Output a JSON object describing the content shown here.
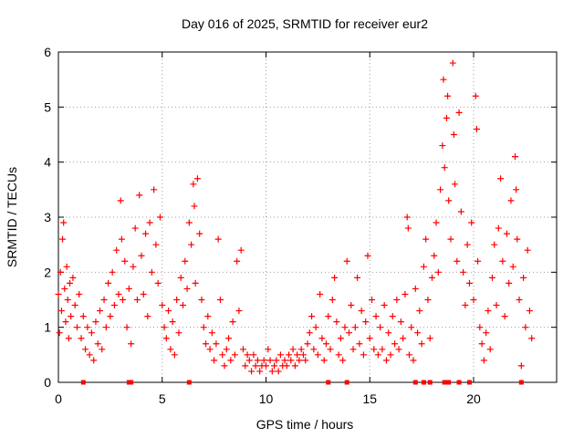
{
  "chart_data": {
    "type": "scatter",
    "title": "Day 016 of 2025, SRMTID for receiver eur2",
    "xlabel": "GPS time / hours",
    "ylabel": "SRMTID / TECUs",
    "xlim": [
      0,
      24
    ],
    "ylim": [
      0,
      6
    ],
    "xticks": [
      0,
      5,
      10,
      15,
      20
    ],
    "yticks": [
      0,
      1,
      2,
      3,
      4,
      5,
      6
    ],
    "grid": true,
    "marker": "+",
    "color": "#ff0000",
    "series": [
      {
        "name": "SRMTID",
        "points": [
          [
            0.0,
            1.6
          ],
          [
            0.05,
            0.9
          ],
          [
            0.1,
            2.0
          ],
          [
            0.15,
            1.3
          ],
          [
            0.2,
            2.6
          ],
          [
            0.25,
            2.9
          ],
          [
            0.3,
            1.7
          ],
          [
            0.35,
            1.1
          ],
          [
            0.4,
            2.1
          ],
          [
            0.45,
            1.5
          ],
          [
            0.5,
            0.8
          ],
          [
            0.55,
            1.8
          ],
          [
            0.6,
            1.2
          ],
          [
            0.7,
            1.9
          ],
          [
            0.8,
            1.4
          ],
          [
            0.9,
            1.0
          ],
          [
            1.0,
            1.6
          ],
          [
            1.1,
            0.8
          ],
          [
            1.2,
            1.2
          ],
          [
            1.3,
            0.6
          ],
          [
            1.4,
            1.0
          ],
          [
            1.5,
            0.5
          ],
          [
            1.6,
            0.9
          ],
          [
            1.7,
            0.4
          ],
          [
            1.8,
            1.1
          ],
          [
            1.9,
            0.7
          ],
          [
            2.0,
            1.3
          ],
          [
            2.1,
            0.6
          ],
          [
            2.2,
            1.5
          ],
          [
            2.3,
            1.0
          ],
          [
            2.4,
            1.8
          ],
          [
            2.5,
            1.2
          ],
          [
            2.6,
            2.0
          ],
          [
            2.7,
            1.4
          ],
          [
            2.8,
            2.4
          ],
          [
            2.9,
            1.6
          ],
          [
            3.0,
            3.3
          ],
          [
            3.05,
            2.6
          ],
          [
            3.1,
            1.5
          ],
          [
            3.2,
            2.2
          ],
          [
            3.3,
            1.0
          ],
          [
            3.4,
            1.7
          ],
          [
            3.5,
            0.7
          ],
          [
            3.6,
            2.1
          ],
          [
            3.7,
            2.8
          ],
          [
            3.8,
            1.5
          ],
          [
            3.9,
            3.4
          ],
          [
            4.0,
            2.3
          ],
          [
            4.1,
            1.6
          ],
          [
            4.2,
            2.7
          ],
          [
            4.3,
            1.2
          ],
          [
            4.4,
            2.9
          ],
          [
            4.5,
            2.0
          ],
          [
            4.6,
            3.5
          ],
          [
            4.7,
            2.5
          ],
          [
            4.8,
            1.8
          ],
          [
            4.9,
            3.0
          ],
          [
            5.0,
            1.4
          ],
          [
            5.1,
            1.0
          ],
          [
            5.2,
            0.8
          ],
          [
            5.3,
            1.3
          ],
          [
            5.4,
            0.6
          ],
          [
            5.5,
            1.1
          ],
          [
            5.6,
            0.5
          ],
          [
            5.7,
            1.5
          ],
          [
            5.8,
            0.9
          ],
          [
            5.9,
            1.9
          ],
          [
            6.0,
            1.4
          ],
          [
            6.1,
            2.2
          ],
          [
            6.2,
            1.7
          ],
          [
            6.3,
            2.9
          ],
          [
            6.4,
            2.5
          ],
          [
            6.5,
            3.6
          ],
          [
            6.55,
            3.2
          ],
          [
            6.6,
            1.8
          ],
          [
            6.7,
            3.7
          ],
          [
            6.8,
            2.7
          ],
          [
            6.9,
            1.5
          ],
          [
            7.0,
            1.0
          ],
          [
            7.1,
            0.7
          ],
          [
            7.2,
            1.2
          ],
          [
            7.3,
            0.6
          ],
          [
            7.4,
            0.9
          ],
          [
            7.5,
            0.4
          ],
          [
            7.6,
            0.7
          ],
          [
            7.7,
            2.6
          ],
          [
            7.8,
            1.5
          ],
          [
            7.9,
            0.5
          ],
          [
            8.0,
            0.3
          ],
          [
            8.1,
            0.6
          ],
          [
            8.2,
            0.8
          ],
          [
            8.3,
            0.4
          ],
          [
            8.4,
            1.1
          ],
          [
            8.5,
            0.5
          ],
          [
            8.6,
            2.2
          ],
          [
            8.7,
            1.3
          ],
          [
            8.8,
            2.4
          ],
          [
            8.9,
            0.6
          ],
          [
            9.0,
            0.3
          ],
          [
            9.1,
            0.5
          ],
          [
            9.2,
            0.4
          ],
          [
            9.3,
            0.2
          ],
          [
            9.4,
            0.5
          ],
          [
            9.5,
            0.3
          ],
          [
            9.6,
            0.4
          ],
          [
            9.7,
            0.2
          ],
          [
            9.8,
            0.3
          ],
          [
            9.9,
            0.4
          ],
          [
            10.0,
            0.3
          ],
          [
            10.1,
            0.6
          ],
          [
            10.2,
            0.4
          ],
          [
            10.3,
            0.2
          ],
          [
            10.4,
            0.3
          ],
          [
            10.5,
            0.4
          ],
          [
            10.6,
            0.2
          ],
          [
            10.7,
            0.5
          ],
          [
            10.8,
            0.3
          ],
          [
            10.9,
            0.4
          ],
          [
            11.0,
            0.3
          ],
          [
            11.1,
            0.5
          ],
          [
            11.2,
            0.4
          ],
          [
            11.3,
            0.6
          ],
          [
            11.4,
            0.3
          ],
          [
            11.5,
            0.5
          ],
          [
            11.6,
            0.4
          ],
          [
            11.7,
            0.6
          ],
          [
            11.8,
            0.5
          ],
          [
            11.9,
            0.4
          ],
          [
            12.0,
            0.7
          ],
          [
            12.1,
            0.9
          ],
          [
            12.2,
            1.2
          ],
          [
            12.3,
            0.6
          ],
          [
            12.4,
            1.0
          ],
          [
            12.5,
            0.5
          ],
          [
            12.6,
            1.6
          ],
          [
            12.7,
            0.8
          ],
          [
            12.8,
            0.4
          ],
          [
            12.9,
            0.7
          ],
          [
            13.0,
            1.2
          ],
          [
            13.1,
            0.6
          ],
          [
            13.2,
            1.5
          ],
          [
            13.3,
            1.9
          ],
          [
            13.4,
            1.1
          ],
          [
            13.5,
            0.5
          ],
          [
            13.6,
            0.8
          ],
          [
            13.7,
            0.4
          ],
          [
            13.8,
            1.0
          ],
          [
            13.9,
            2.2
          ],
          [
            14.0,
            0.9
          ],
          [
            14.1,
            1.4
          ],
          [
            14.2,
            0.6
          ],
          [
            14.3,
            1.0
          ],
          [
            14.4,
            1.9
          ],
          [
            14.5,
            0.7
          ],
          [
            14.6,
            1.3
          ],
          [
            14.7,
            0.5
          ],
          [
            14.8,
            1.1
          ],
          [
            14.9,
            2.3
          ],
          [
            15.0,
            0.8
          ],
          [
            15.1,
            1.5
          ],
          [
            15.2,
            0.6
          ],
          [
            15.3,
            1.2
          ],
          [
            15.4,
            0.5
          ],
          [
            15.5,
            1.0
          ],
          [
            15.6,
            0.6
          ],
          [
            15.7,
            1.4
          ],
          [
            15.8,
            0.4
          ],
          [
            15.9,
            0.9
          ],
          [
            16.0,
            0.5
          ],
          [
            16.1,
            1.2
          ],
          [
            16.2,
            0.7
          ],
          [
            16.3,
            1.5
          ],
          [
            16.4,
            0.6
          ],
          [
            16.5,
            1.1
          ],
          [
            16.6,
            0.8
          ],
          [
            16.7,
            1.6
          ],
          [
            16.8,
            3.0
          ],
          [
            16.85,
            2.8
          ],
          [
            16.9,
            0.5
          ],
          [
            17.0,
            1.0
          ],
          [
            17.1,
            0.4
          ],
          [
            17.2,
            1.7
          ],
          [
            17.3,
            0.9
          ],
          [
            17.4,
            1.3
          ],
          [
            17.5,
            0.7
          ],
          [
            17.6,
            2.1
          ],
          [
            17.7,
            2.6
          ],
          [
            17.8,
            1.5
          ],
          [
            17.9,
            0.8
          ],
          [
            18.0,
            1.9
          ],
          [
            18.1,
            2.3
          ],
          [
            18.2,
            2.9
          ],
          [
            18.3,
            2.0
          ],
          [
            18.4,
            3.5
          ],
          [
            18.5,
            4.3
          ],
          [
            18.55,
            5.5
          ],
          [
            18.6,
            3.9
          ],
          [
            18.7,
            4.8
          ],
          [
            18.75,
            5.2
          ],
          [
            18.8,
            3.3
          ],
          [
            18.9,
            2.6
          ],
          [
            19.0,
            5.8
          ],
          [
            19.05,
            4.5
          ],
          [
            19.1,
            3.6
          ],
          [
            19.2,
            2.2
          ],
          [
            19.3,
            4.9
          ],
          [
            19.4,
            3.1
          ],
          [
            19.5,
            2.0
          ],
          [
            19.6,
            1.4
          ],
          [
            19.7,
            2.5
          ],
          [
            19.8,
            1.8
          ],
          [
            19.9,
            2.9
          ],
          [
            20.0,
            1.5
          ],
          [
            20.1,
            5.2
          ],
          [
            20.15,
            4.6
          ],
          [
            20.2,
            2.2
          ],
          [
            20.3,
            1.0
          ],
          [
            20.4,
            0.7
          ],
          [
            20.5,
            0.4
          ],
          [
            20.6,
            0.9
          ],
          [
            20.7,
            1.3
          ],
          [
            20.8,
            0.6
          ],
          [
            20.9,
            1.9
          ],
          [
            21.0,
            2.5
          ],
          [
            21.1,
            1.4
          ],
          [
            21.2,
            2.8
          ],
          [
            21.3,
            3.7
          ],
          [
            21.4,
            2.2
          ],
          [
            21.5,
            1.2
          ],
          [
            21.6,
            2.7
          ],
          [
            21.7,
            1.8
          ],
          [
            21.8,
            3.3
          ],
          [
            21.9,
            2.1
          ],
          [
            22.0,
            4.1
          ],
          [
            22.05,
            3.5
          ],
          [
            22.1,
            2.6
          ],
          [
            22.2,
            1.5
          ],
          [
            22.3,
            0.3
          ],
          [
            22.4,
            1.9
          ],
          [
            22.5,
            1.0
          ],
          [
            22.6,
            2.4
          ],
          [
            22.7,
            1.3
          ],
          [
            22.8,
            0.8
          ]
        ]
      }
    ],
    "axis_markers": [
      1.2,
      3.4,
      3.5,
      6.3,
      13.0,
      13.9,
      17.2,
      17.6,
      17.9,
      18.6,
      18.8,
      19.3,
      19.8,
      22.3
    ]
  }
}
